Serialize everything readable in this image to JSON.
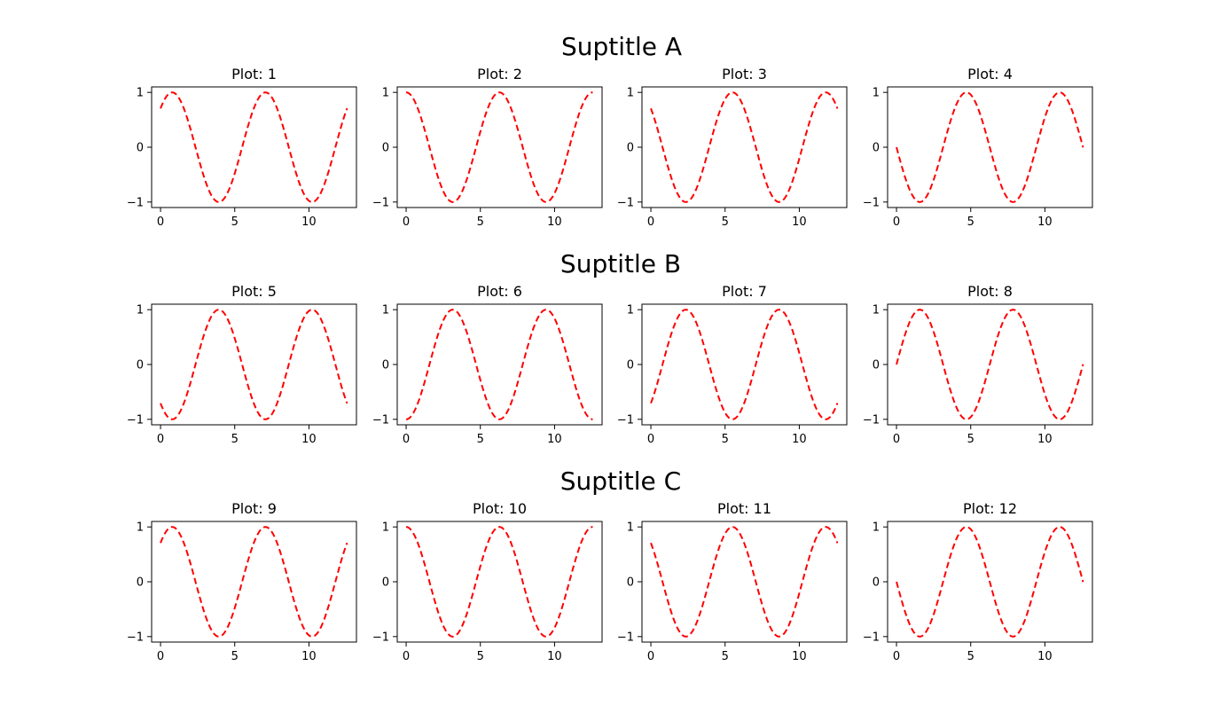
{
  "figure": {
    "background": "#ffffff",
    "line_color": "#ff0000",
    "line_style": "dashed"
  },
  "suptitles": [
    "Suptitle A",
    "Suptitle B",
    "Suptitle C"
  ],
  "chart_data": [
    {
      "type": "line",
      "title": "Plot: 1",
      "function": "sin(x + 0.785)",
      "xlim": [
        -0.6,
        13.2
      ],
      "ylim": [
        -1.1,
        1.1
      ],
      "xticks": [
        0,
        5,
        10
      ],
      "yticks": [
        -1,
        0,
        1
      ],
      "x_range": [
        0,
        12.57
      ]
    },
    {
      "type": "line",
      "title": "Plot: 2",
      "function": "sin(x + 1.571)",
      "xlim": [
        -0.6,
        13.2
      ],
      "ylim": [
        -1.1,
        1.1
      ],
      "xticks": [
        0,
        5,
        10
      ],
      "yticks": [
        -1,
        0,
        1
      ],
      "x_range": [
        0,
        12.57
      ]
    },
    {
      "type": "line",
      "title": "Plot: 3",
      "function": "sin(x + 2.356)",
      "xlim": [
        -0.6,
        13.2
      ],
      "ylim": [
        -1.1,
        1.1
      ],
      "xticks": [
        0,
        5,
        10
      ],
      "yticks": [
        -1,
        0,
        1
      ],
      "x_range": [
        0,
        12.57
      ]
    },
    {
      "type": "line",
      "title": "Plot: 4",
      "function": "sin(x + 3.142)",
      "xlim": [
        -0.6,
        13.2
      ],
      "ylim": [
        -1.1,
        1.1
      ],
      "xticks": [
        0,
        5,
        10
      ],
      "yticks": [
        -1,
        0,
        1
      ],
      "x_range": [
        0,
        12.57
      ]
    },
    {
      "type": "line",
      "title": "Plot: 5",
      "function": "sin(x + 3.927)",
      "xlim": [
        -0.6,
        13.2
      ],
      "ylim": [
        -1.1,
        1.1
      ],
      "xticks": [
        0,
        5,
        10
      ],
      "yticks": [
        -1,
        0,
        1
      ],
      "x_range": [
        0,
        12.57
      ]
    },
    {
      "type": "line",
      "title": "Plot: 6",
      "function": "sin(x + 4.712)",
      "xlim": [
        -0.6,
        13.2
      ],
      "ylim": [
        -1.1,
        1.1
      ],
      "xticks": [
        0,
        5,
        10
      ],
      "yticks": [
        -1,
        0,
        1
      ],
      "x_range": [
        0,
        12.57
      ]
    },
    {
      "type": "line",
      "title": "Plot: 7",
      "function": "sin(x + 5.498)",
      "xlim": [
        -0.6,
        13.2
      ],
      "ylim": [
        -1.1,
        1.1
      ],
      "xticks": [
        0,
        5,
        10
      ],
      "yticks": [
        -1,
        0,
        1
      ],
      "x_range": [
        0,
        12.57
      ]
    },
    {
      "type": "line",
      "title": "Plot: 8",
      "function": "sin(x)",
      "xlim": [
        -0.6,
        13.2
      ],
      "ylim": [
        -1.1,
        1.1
      ],
      "xticks": [
        0,
        5,
        10
      ],
      "yticks": [
        -1,
        0,
        1
      ],
      "x_range": [
        0,
        12.57
      ]
    },
    {
      "type": "line",
      "title": "Plot: 9",
      "function": "sin(x + 0.785)",
      "xlim": [
        -0.6,
        13.2
      ],
      "ylim": [
        -1.1,
        1.1
      ],
      "xticks": [
        0,
        5,
        10
      ],
      "yticks": [
        -1,
        0,
        1
      ],
      "x_range": [
        0,
        12.57
      ]
    },
    {
      "type": "line",
      "title": "Plot: 10",
      "function": "sin(x + 1.571)",
      "xlim": [
        -0.6,
        13.2
      ],
      "ylim": [
        -1.1,
        1.1
      ],
      "xticks": [
        0,
        5,
        10
      ],
      "yticks": [
        -1,
        0,
        1
      ],
      "x_range": [
        0,
        12.57
      ]
    },
    {
      "type": "line",
      "title": "Plot: 11",
      "function": "sin(x + 2.356)",
      "xlim": [
        -0.6,
        13.2
      ],
      "ylim": [
        -1.1,
        1.1
      ],
      "xticks": [
        0,
        5,
        10
      ],
      "yticks": [
        -1,
        0,
        1
      ],
      "x_range": [
        0,
        12.57
      ]
    },
    {
      "type": "line",
      "title": "Plot: 12",
      "function": "sin(x + 3.142)",
      "xlim": [
        -0.6,
        13.2
      ],
      "ylim": [
        -1.1,
        1.1
      ],
      "xticks": [
        0,
        5,
        10
      ],
      "yticks": [
        -1,
        0,
        1
      ],
      "x_range": [
        0,
        12.57
      ]
    }
  ]
}
